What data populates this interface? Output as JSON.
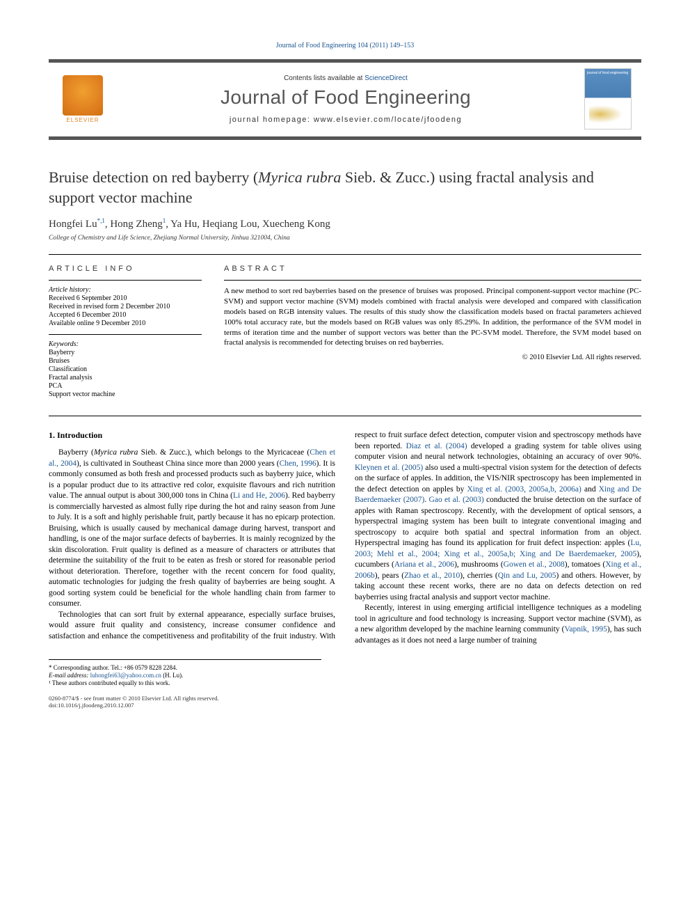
{
  "header": {
    "citation": "Journal of Food Engineering 104 (2011) 149–153",
    "contents_prefix": "Contents lists available at ",
    "contents_link": "ScienceDirect",
    "journal_name": "Journal of Food Engineering",
    "homepage_prefix": "journal homepage: ",
    "homepage_url": "www.elsevier.com/locate/jfoodeng",
    "publisher_label": "ELSEVIER",
    "cover_label": "journal of food engineering"
  },
  "article": {
    "title_pre": "Bruise detection on red bayberry (",
    "title_species": "Myrica rubra",
    "title_post": " Sieb. & Zucc.) using fractal analysis and support vector machine",
    "authors_html": "Hongfei Lu",
    "author_sup1": "*,1",
    "author2": ", Hong Zheng",
    "author_sup2": "1",
    "author_rest": ", Ya Hu, Heqiang Lou, Xuecheng Kong",
    "affiliation": "College of Chemistry and Life Science, Zhejiang Normal University, Jinhua 321004, China"
  },
  "info_labels": {
    "article_info": "ARTICLE INFO",
    "abstract": "ABSTRACT"
  },
  "history": {
    "heading": "Article history:",
    "received": "Received 6 September 2010",
    "revised": "Received in revised form 2 December 2010",
    "accepted": "Accepted 6 December 2010",
    "online": "Available online 9 December 2010"
  },
  "keywords": {
    "heading": "Keywords:",
    "k1": "Bayberry",
    "k2": "Bruises",
    "k3": "Classification",
    "k4": "Fractal analysis",
    "k5": "PCA",
    "k6": "Support vector machine"
  },
  "abstract": {
    "text": "A new method to sort red bayberries based on the presence of bruises was proposed. Principal component-support vector machine (PC-SVM) and support vector machine (SVM) models combined with fractal analysis were developed and compared with classification models based on RGB intensity values. The results of this study show the classification models based on fractal parameters achieved 100% total accuracy rate, but the models based on RGB values was only 85.29%. In addition, the performance of the SVM model in terms of iteration time and the number of support vectors was better than the PC-SVM model. Therefore, the SVM model based on fractal analysis is recommended for detecting bruises on red bayberries.",
    "copyright": "© 2010 Elsevier Ltd. All rights reserved."
  },
  "body": {
    "section1_heading": "1. Introduction",
    "p1a": "Bayberry (",
    "p1_species": "Myrica rubra",
    "p1b": " Sieb. & Zucc.), which belongs to the Myricaceae (",
    "p1_cite1": "Chen et al., 2004",
    "p1c": "), is cultivated in Southeast China since more than 2000 years (",
    "p1_cite2": "Chen, 1996",
    "p1d": "). It is commonly consumed as both fresh and processed products such as bayberry juice, which is a popular product due to its attractive red color, exquisite flavours and rich nutrition value. The annual output is about 300,000 tons in China (",
    "p1_cite3": "Li and He, 2006",
    "p1e": "). Red bayberry is commercially harvested as almost fully ripe during the hot and rainy season from June to July. It is a soft and highly perishable fruit, partly because it has no epicarp protection. Bruising, which is usually caused by mechanical damage during harvest, transport and handling, is one of the major surface defects of bayberries. It is mainly recognized by the skin discoloration. Fruit quality is defined as a measure of characters or attributes that determine the suitability of the fruit to be eaten as fresh or stored for reasonable period without deterioration. Therefore, together with the recent concern for food quality, automatic technologies for judging the fresh quality of bayberries are being sought. A good sorting system could be beneficial for the whole handling chain from farmer to consumer.",
    "p2": "Technologies that can sort fruit by external appearance, especially surface bruises, would assure fruit quality and consistency, increase consumer confidence and satisfaction and enhance the competitiveness and profitability of the fruit industry. With respect to fruit surface defect detection, computer vision and spectroscopy methods have been reported. ",
    "p2_cite1": "Diaz et al. (2004)",
    "p2b": " developed a grading system for table olives using computer vision and neural network technologies, obtaining an accuracy of over 90%. ",
    "p2_cite2": "Kleynen et al. (2005)",
    "p2c": " also used a multi-spectral vision system for the detection of defects on the surface of apples. In addition, the VIS/NIR spectroscopy has been implemented in the defect detection on apples by ",
    "p2_cite3": "Xing et al. (2003, 2005a,b, 2006a)",
    "p2d": " and ",
    "p2_cite4": "Xing and De Baerdemaeker (2007)",
    "p2e": ". ",
    "p2_cite5": "Gao et al. (2003)",
    "p2f": " conducted the bruise detection on the surface of apples with Raman spectroscopy. Recently, with the development of optical sensors, a hyperspectral imaging system has been built to integrate conventional imaging and spectroscopy to acquire both spatial and spectral information from an object. Hyperspectral imaging has found its application for fruit defect inspection: apples (",
    "p2_cite6": "Lu, 2003; Mehl et al., 2004; Xing et al., 2005a,b; Xing and De Baerdemaeker, 2005",
    "p2g": "), cucumbers (",
    "p2_cite7": "Ariana et al., 2006",
    "p2h": "), mushrooms (",
    "p2_cite8": "Gowen et al., 2008",
    "p2i": "), tomatoes (",
    "p2_cite9": "Xing et al., 2006b",
    "p2j": "), pears (",
    "p2_cite10": "Zhao et al., 2010",
    "p2k": "), cherries (",
    "p2_cite11": "Qin and Lu, 2005",
    "p2l": ") and others. However, by taking account these recent works, there are no data on defects detection on red bayberries using fractal analysis and support vector machine.",
    "p3": "Recently, interest in using emerging artificial intelligence techniques as a modeling tool in agriculture and food technology is increasing. Support vector machine (SVM), as a new algorithm developed by the machine learning community (",
    "p3_cite1": "Vapnik, 1995",
    "p3b": "), has such advantages as it does not need a large number of training"
  },
  "footnotes": {
    "corr": "* Corresponding author. Tel.: +86 0579 8228 2284.",
    "email_label": "E-mail address: ",
    "email": "luhongfei63@yahoo.com.cn",
    "email_suffix": " (H. Lu).",
    "equal": "¹ These authors contributed equally to this work."
  },
  "bottom": {
    "line1": "0260-8774/$ - see front matter © 2010 Elsevier Ltd. All rights reserved.",
    "line2": "doi:10.1016/j.jfoodeng.2010.12.007"
  },
  "colors": {
    "link": "#1a5490",
    "border": "#555555",
    "text": "#333333",
    "elsevier_orange": "#e08020"
  }
}
